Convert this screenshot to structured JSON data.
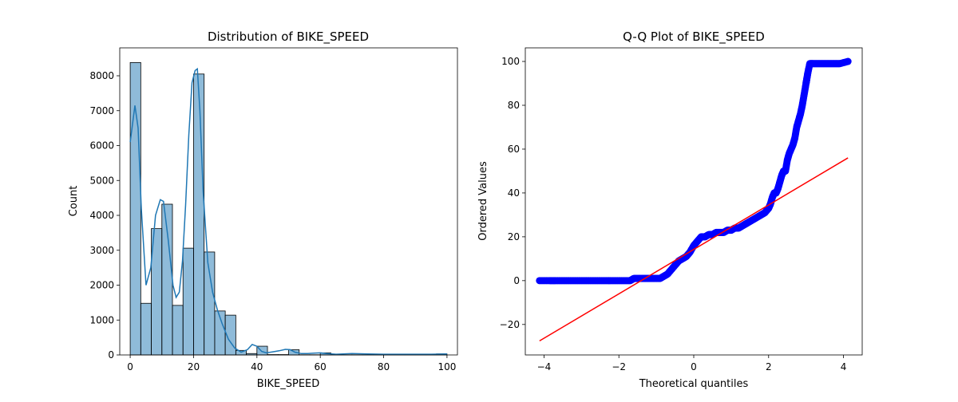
{
  "chart_data": [
    {
      "type": "bar",
      "title": "Distribution of BIKE_SPEED",
      "xlabel": "BIKE_SPEED",
      "ylabel": "Count",
      "xlim": [
        -3.3,
        103.3
      ],
      "ylim": [
        0,
        8800
      ],
      "xticks": [
        0,
        20,
        40,
        60,
        80,
        100
      ],
      "yticks": [
        0,
        1000,
        2000,
        3000,
        4000,
        5000,
        6000,
        7000,
        8000
      ],
      "grid": false,
      "bar_color": "#1f77b4",
      "bin_width": 3.333,
      "bins_start": [
        0,
        3.333,
        6.667,
        10,
        13.333,
        16.667,
        20,
        23.333,
        26.667,
        30,
        33.333,
        36.667,
        40,
        43.333,
        46.667,
        50,
        53.333,
        56.667,
        60,
        63.333,
        66.667,
        70,
        73.333,
        76.667,
        80,
        83.333,
        86.667,
        90,
        93.333,
        96.667
      ],
      "values": [
        8380,
        1480,
        3620,
        4320,
        1420,
        3060,
        8050,
        2950,
        1260,
        1140,
        130,
        40,
        250,
        10,
        10,
        150,
        5,
        5,
        60,
        5,
        5,
        5,
        5,
        5,
        5,
        5,
        5,
        5,
        5,
        30
      ],
      "kde": {
        "x": [
          0,
          1.5,
          2.5,
          3.5,
          5,
          6.5,
          8,
          9.5,
          10.5,
          12,
          13.5,
          14.5,
          15.5,
          16.5,
          17.5,
          18.5,
          19.5,
          20.5,
          21.2,
          22,
          23,
          24.5,
          26,
          27.5,
          29,
          31,
          33,
          35,
          37,
          38.5,
          40,
          41.5,
          43,
          45,
          47,
          49,
          50.5,
          52,
          54,
          56,
          58,
          60,
          62,
          65,
          70,
          75,
          80,
          85,
          90,
          95,
          100
        ],
        "y": [
          6100,
          7150,
          6500,
          4200,
          2000,
          2500,
          4000,
          4450,
          4400,
          3300,
          2000,
          1650,
          1800,
          2700,
          4300,
          6300,
          7800,
          8150,
          8200,
          7000,
          4700,
          2650,
          1800,
          1300,
          900,
          450,
          200,
          80,
          150,
          300,
          250,
          100,
          60,
          90,
          120,
          160,
          150,
          80,
          40,
          40,
          50,
          60,
          40,
          20,
          40,
          30,
          20,
          20,
          20,
          20,
          30
        ]
      }
    },
    {
      "type": "scatter",
      "title": "Q-Q Plot of BIKE_SPEED",
      "xlabel": "Theoretical quantiles",
      "ylabel": "Ordered Values",
      "xlim": [
        -4.5,
        4.5
      ],
      "ylim": [
        -33.9,
        106.2
      ],
      "xticks": [
        -4,
        -2,
        0,
        2,
        4
      ],
      "yticks": [
        -20,
        0,
        20,
        40,
        60,
        80,
        100
      ],
      "grid": false,
      "point_color": "#0000ff",
      "line_color": "#ff0000",
      "points": {
        "x": [
          -4.12,
          -3.85,
          -3.7,
          -3.5,
          -3.3,
          -3.1,
          -2.9,
          -2.7,
          -2.5,
          -2.3,
          -2.1,
          -1.9,
          -1.7,
          -1.6,
          -1.5,
          -1.4,
          -1.3,
          -1.2,
          -1.1,
          -1.0,
          -0.9,
          -0.8,
          -0.7,
          -0.6,
          -0.5,
          -0.4,
          -0.3,
          -0.2,
          -0.1,
          0.0,
          0.1,
          0.2,
          0.3,
          0.4,
          0.5,
          0.6,
          0.7,
          0.8,
          0.9,
          1.0,
          1.1,
          1.2,
          1.3,
          1.4,
          1.5,
          1.6,
          1.7,
          1.8,
          1.9,
          2.0,
          2.05,
          2.1,
          2.15,
          2.2,
          2.25,
          2.3,
          2.35,
          2.4,
          2.45,
          2.5,
          2.55,
          2.6,
          2.65,
          2.7,
          2.75,
          2.8,
          2.85,
          2.9,
          2.95,
          3.0,
          3.02,
          3.05,
          3.1,
          3.2,
          3.3,
          3.4,
          3.5,
          3.6,
          3.7,
          3.8,
          3.9,
          4.12
        ],
        "y": [
          0,
          0,
          0,
          0,
          0,
          0,
          0,
          0,
          0,
          0,
          0,
          0,
          0,
          1,
          1,
          1,
          1,
          1,
          1,
          1,
          1,
          2,
          3,
          5,
          7,
          9,
          10,
          11,
          13,
          16,
          18,
          20,
          20,
          21,
          21,
          22,
          22,
          22,
          23,
          23,
          24,
          24,
          25,
          26,
          27,
          28,
          29,
          30,
          31,
          33,
          35,
          38,
          40,
          40,
          42,
          45,
          48,
          50,
          50,
          55,
          58,
          60,
          62,
          65,
          70,
          73,
          76,
          80,
          85,
          90,
          92,
          95,
          99,
          99,
          99,
          99,
          99,
          99,
          99,
          99,
          99,
          100
        ]
      },
      "fit_line": {
        "x": [
          -4.12,
          4.12
        ],
        "y": [
          -27.5,
          56
        ]
      }
    }
  ]
}
